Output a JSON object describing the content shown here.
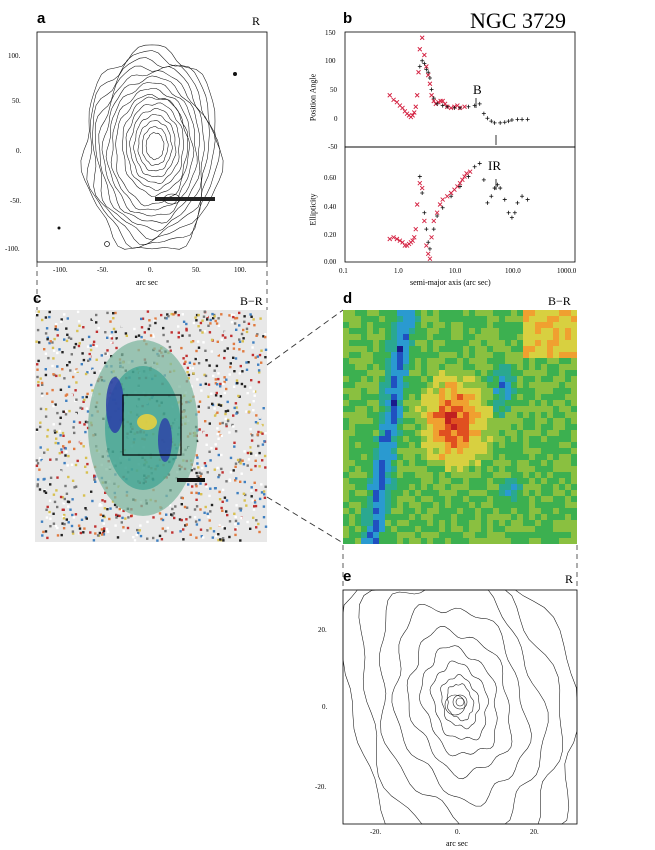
{
  "title": "NGC 3729",
  "panels": {
    "a": {
      "letter": "a",
      "filter": "R",
      "xlabel": "arc sec",
      "xticks": [
        "-100.",
        "-50.",
        "0.",
        "50.",
        "100."
      ],
      "yticks": [
        "100.",
        "50.",
        "0.",
        "-50.",
        "-100."
      ]
    },
    "b": {
      "letter": "b",
      "xlabel": "semi-major axis (arc sec)",
      "ylabel_top": "Position Angle",
      "ylabel_bottom": "Ellipticity",
      "yticks_top": [
        "150",
        "100",
        "50",
        "0",
        "-50"
      ],
      "yticks_bottom": [
        "0.60",
        "0.40",
        "0.20",
        "0.00"
      ],
      "xticks": [
        "0.1",
        "1.0",
        "10.0",
        "100.0",
        "1000.0"
      ],
      "annot_b": "B",
      "annot_ir": "IR"
    },
    "c": {
      "letter": "c",
      "filter": "B−R"
    },
    "d": {
      "letter": "d",
      "filter": "B−R"
    },
    "e": {
      "letter": "e",
      "filter": "R",
      "xlabel": "arc sec",
      "xticks": [
        "-20.",
        "0.",
        "20."
      ],
      "yticks": [
        "20.",
        "0.",
        "-20."
      ]
    }
  },
  "chart_data": [
    {
      "type": "scatter",
      "panel": "b-position-angle",
      "xscale": "log",
      "xlim": [
        0.1,
        1000
      ],
      "ylim": [
        -50,
        150
      ],
      "ylabel": "Position Angle",
      "xlabel": "semi-major axis (arc sec)",
      "series": [
        {
          "color": "#d42040",
          "x": [
            0.6,
            0.7,
            0.8,
            0.9,
            1.0,
            1.1,
            1.2,
            1.3,
            1.4,
            1.5,
            1.6,
            1.7,
            1.8,
            1.9,
            2.0,
            2.2,
            2.4,
            2.6,
            2.8,
            3.0,
            3.2,
            3.5,
            3.8,
            4.2,
            4.6,
            5.0,
            5.5,
            6.0,
            7.0,
            8.0,
            9.0,
            10.0,
            12.0
          ],
          "y": [
            40,
            32,
            28,
            22,
            18,
            12,
            8,
            5,
            2,
            5,
            10,
            20,
            40,
            80,
            120,
            140,
            110,
            90,
            75,
            60,
            40,
            30,
            25,
            28,
            30,
            30,
            25,
            20,
            18,
            20,
            22,
            18,
            20
          ]
        }
      ]
    },
    {
      "type": "scatter",
      "panel": "b-position-angle",
      "series": [
        {
          "color": "#111111",
          "x": [
            2.0,
            2.2,
            2.4,
            2.6,
            2.8,
            3.0,
            3.2,
            3.5,
            4.0,
            5.0,
            6.0,
            8.0,
            10.0,
            14.0,
            18.0,
            22.0,
            26.0,
            30.0,
            35.0,
            40.0,
            50.0,
            60.0,
            70.0,
            80.0,
            100.0,
            120.0,
            150.0
          ],
          "y": [
            90,
            100,
            95,
            85,
            80,
            70,
            50,
            35,
            25,
            22,
            20,
            18,
            18,
            20,
            22,
            25,
            8,
            0,
            -5,
            -8,
            -8,
            -7,
            -5,
            -3,
            -2,
            -2,
            -2
          ]
        }
      ]
    },
    {
      "type": "scatter",
      "panel": "b-ellipticity",
      "xscale": "log",
      "xlim": [
        0.1,
        1000
      ],
      "ylim": [
        0.0,
        0.7
      ],
      "ylabel": "Ellipticity",
      "series": [
        {
          "color": "#d42040",
          "x": [
            0.6,
            0.7,
            0.8,
            0.9,
            1.0,
            1.1,
            1.2,
            1.3,
            1.4,
            1.5,
            1.6,
            1.7,
            1.8,
            2.0,
            2.2,
            2.4,
            2.6,
            2.8,
            3.0,
            3.2,
            3.5,
            4.0,
            4.5,
            5.0,
            6.0,
            7.0,
            8.0,
            9.0,
            10.0,
            11.0,
            12.0,
            13.0,
            15.0
          ],
          "y": [
            0.14,
            0.15,
            0.14,
            0.13,
            0.12,
            0.1,
            0.1,
            0.11,
            0.12,
            0.13,
            0.15,
            0.2,
            0.35,
            0.48,
            0.45,
            0.25,
            0.1,
            0.05,
            0.02,
            0.15,
            0.25,
            0.3,
            0.35,
            0.38,
            0.4,
            0.42,
            0.44,
            0.46,
            0.48,
            0.5,
            0.52,
            0.54,
            0.55
          ]
        }
      ]
    },
    {
      "type": "scatter",
      "panel": "b-ellipticity",
      "series": [
        {
          "color": "#111111",
          "x": [
            2.0,
            2.2,
            2.4,
            2.6,
            2.8,
            3.0,
            3.5,
            4.0,
            5.0,
            7.0,
            10.0,
            14.0,
            18.0,
            22.0,
            26.0,
            30.0,
            35.0,
            40.0,
            45.0,
            50.0,
            60.0,
            70.0,
            80.0,
            90.0,
            100.0,
            120.0,
            150.0
          ],
          "y": [
            0.52,
            0.42,
            0.3,
            0.2,
            0.12,
            0.08,
            0.2,
            0.28,
            0.33,
            0.4,
            0.46,
            0.52,
            0.58,
            0.6,
            0.5,
            0.36,
            0.4,
            0.45,
            0.47,
            0.45,
            0.38,
            0.3,
            0.27,
            0.3,
            0.36,
            0.4,
            0.38
          ]
        }
      ]
    }
  ]
}
